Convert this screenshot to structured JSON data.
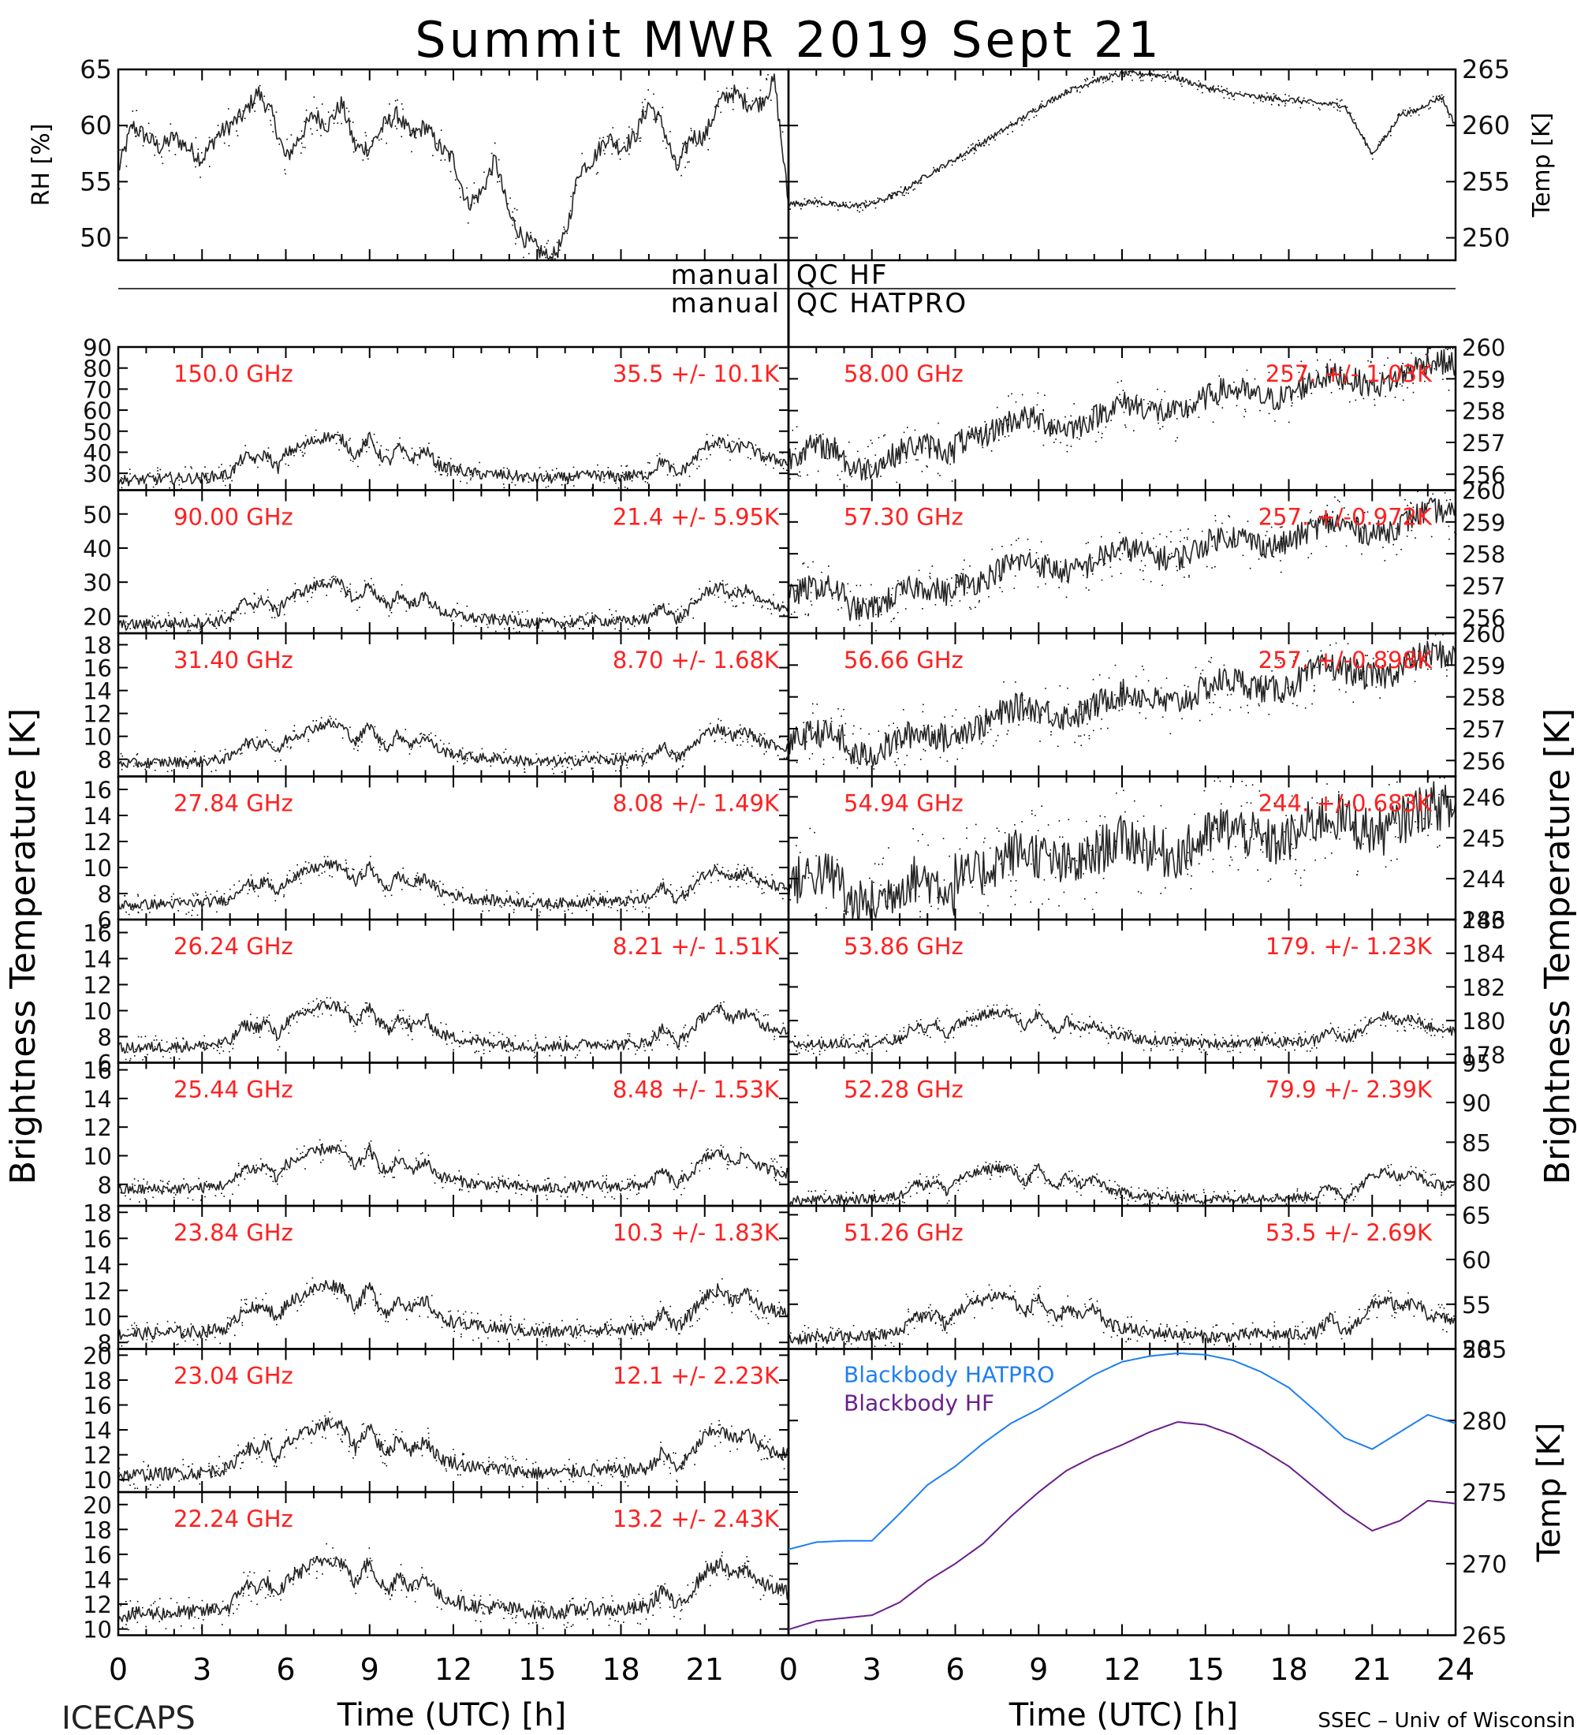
{
  "title": "Summit MWR 2019 Sept 21",
  "left_label": "ICECAPS",
  "credit": "SSEC – Univ of Wisconsin",
  "xlabel": "Time (UTC) [h]",
  "ylabel_left": "Brightness Temperature [K]",
  "ylabel_right": "Brightness Temperature [K]",
  "qc": {
    "line1": "manual QC HF",
    "line2": "manual QC HATPRO",
    "left1": "manual",
    "right1": "QC HF",
    "left2": "manual",
    "right2": "QC HATPRO"
  },
  "x_ticks_left": [
    "0",
    "3",
    "6",
    "9",
    "12",
    "15",
    "18",
    "21"
  ],
  "x_ticks_right": [
    "0",
    "3",
    "6",
    "9",
    "12",
    "15",
    "18",
    "21",
    "24"
  ],
  "colors": {
    "annotation": "#ff2020",
    "hatpro": "#1e7ff0",
    "hf": "#6a1f8a",
    "axis": "#000000"
  },
  "chart_data": [
    {
      "id": "rh",
      "type": "scatter",
      "ylabel": "RH [%]",
      "ylim": [
        48,
        65
      ],
      "yticks": [
        50,
        55,
        60,
        65
      ],
      "xlim": [
        0,
        24
      ],
      "x": [
        0,
        0.5,
        1,
        1.5,
        2,
        2.5,
        3,
        3.5,
        4,
        4.5,
        5,
        5.5,
        6,
        6.5,
        7,
        7.5,
        8,
        8.5,
        9,
        9.5,
        10,
        10.5,
        11,
        11.5,
        12,
        12.5,
        13,
        13.5,
        14,
        14.5,
        15,
        15.5,
        16,
        16.5,
        17,
        17.5,
        18,
        18.5,
        19,
        19.5,
        20,
        20.5,
        21,
        21.5,
        22,
        22.5,
        23,
        23.5,
        24
      ],
      "values": [
        56,
        60,
        59,
        58,
        59,
        58,
        57,
        59,
        60,
        61,
        63,
        61,
        57,
        59,
        61,
        60,
        62,
        58,
        58,
        60,
        61,
        59,
        60,
        58,
        57,
        53,
        54,
        57,
        52,
        50,
        49,
        48,
        50,
        56,
        57,
        59,
        58,
        59,
        62,
        60,
        56,
        59,
        59,
        62,
        63,
        62,
        62,
        64,
        53
      ]
    },
    {
      "id": "temp",
      "type": "line",
      "ylabel": "Temp [K]",
      "ylim": [
        248,
        265
      ],
      "yticks": [
        250,
        255,
        260,
        265
      ],
      "xlim": [
        0,
        24
      ],
      "x": [
        0,
        1,
        2,
        3,
        4,
        5,
        6,
        7,
        8,
        9,
        10,
        11,
        12,
        13,
        14,
        15,
        16,
        17,
        18,
        19,
        20,
        20.5,
        21,
        21.5,
        22,
        22.5,
        23,
        23.5,
        24
      ],
      "values": [
        253.0,
        253.2,
        252.8,
        253.0,
        254.0,
        255.6,
        257.0,
        258.5,
        260.0,
        261.6,
        263.0,
        264.0,
        264.6,
        264.6,
        264.2,
        263.4,
        262.8,
        262.5,
        262.3,
        262.0,
        261.8,
        259.6,
        257.5,
        259.0,
        261.0,
        261.2,
        262.0,
        262.5,
        260.0
      ]
    }
  ],
  "channels_left": [
    {
      "freq": "150.0 GHz",
      "stats": "35.5 +/-  10.1K",
      "ylim": [
        22,
        90
      ],
      "yticks": [
        30,
        40,
        50,
        60,
        70,
        80,
        90
      ],
      "base": 26,
      "amp": 30
    },
    {
      "freq": "90.00 GHz",
      "stats": "21.4 +/-  5.95K",
      "ylim": [
        15,
        57
      ],
      "yticks": [
        20,
        30,
        40,
        50
      ],
      "base": 17,
      "amp": 18
    },
    {
      "freq": "31.40 GHz",
      "stats": "8.70 +/- 1.68K",
      "ylim": [
        6.5,
        19
      ],
      "yticks": [
        8,
        10,
        12,
        14,
        16,
        18
      ],
      "base": 7.5,
      "amp": 5
    },
    {
      "freq": "27.84 GHz",
      "stats": "8.08 +/- 1.49K",
      "ylim": [
        6,
        17
      ],
      "yticks": [
        6,
        8,
        10,
        12,
        14,
        16
      ],
      "base": 7,
      "amp": 4.5
    },
    {
      "freq": "26.24 GHz",
      "stats": "8.21 +/- 1.51K",
      "ylim": [
        6,
        17
      ],
      "yticks": [
        6,
        8,
        10,
        12,
        14,
        16
      ],
      "base": 7,
      "amp": 4.8
    },
    {
      "freq": "25.44 GHz",
      "stats": "8.48 +/- 1.53K",
      "ylim": [
        6.5,
        16.5
      ],
      "yticks": [
        8,
        10,
        12,
        14,
        16
      ],
      "base": 7.5,
      "amp": 4.2
    },
    {
      "freq": "23.84 GHz",
      "stats": "10.3 +/- 1.83K",
      "ylim": [
        7.5,
        18.5
      ],
      "yticks": [
        8,
        10,
        12,
        14,
        16,
        18
      ],
      "base": 8.5,
      "amp": 5.5
    },
    {
      "freq": "23.04 GHz",
      "stats": "12.1 +/- 2.23K",
      "ylim": [
        9,
        20.5
      ],
      "yticks": [
        10,
        12,
        14,
        16,
        18,
        20
      ],
      "base": 10.2,
      "amp": 6
    },
    {
      "freq": "22.24 GHz",
      "stats": "13.2 +/- 2.43K",
      "ylim": [
        9.5,
        21
      ],
      "yticks": [
        10,
        12,
        14,
        16,
        18,
        20
      ],
      "base": 11,
      "amp": 6.5
    }
  ],
  "channels_right": [
    {
      "freq": "58.00 GHz",
      "stats": "257. +/- 1.03K",
      "ylim": [
        255.5,
        260
      ],
      "yticks": [
        256,
        257,
        258,
        259,
        260
      ],
      "start": 256.5,
      "end": 259.4,
      "noise": 0.4
    },
    {
      "freq": "57.30 GHz",
      "stats": "257. +/-0.972K",
      "ylim": [
        255.5,
        260
      ],
      "yticks": [
        256,
        257,
        258,
        259,
        260
      ],
      "start": 256.6,
      "end": 259.2,
      "noise": 0.4
    },
    {
      "freq": "56.66 GHz",
      "stats": "257. +/-0.898K",
      "ylim": [
        255.5,
        260
      ],
      "yticks": [
        256,
        257,
        258,
        259,
        260
      ],
      "start": 256.5,
      "end": 259.2,
      "noise": 0.45
    },
    {
      "freq": "54.94 GHz",
      "stats": "244. +/-0.683K",
      "ylim": [
        243,
        246.5
      ],
      "yticks": [
        243,
        244,
        245,
        246
      ],
      "start": 243.8,
      "end": 245.6,
      "noise": 0.6
    },
    {
      "freq": "53.86 GHz",
      "stats": "179. +/- 1.23K",
      "ylim": [
        177.5,
        186
      ],
      "yticks": [
        178,
        180,
        182,
        184,
        186
      ],
      "base": 178.5,
      "amp": 2.8
    },
    {
      "freq": "52.28 GHz",
      "stats": "79.9 +/- 2.39K",
      "ylim": [
        77,
        95
      ],
      "yticks": [
        80,
        85,
        90,
        95
      ],
      "base": 77.5,
      "amp": 6
    },
    {
      "freq": "51.26 GHz",
      "stats": "53.5 +/- 2.69K",
      "ylim": [
        50,
        66
      ],
      "yticks": [
        50,
        55,
        60,
        65
      ],
      "base": 51,
      "amp": 7
    }
  ],
  "blackbody": {
    "type": "line",
    "ylabel": "Temp [K]",
    "ylim": [
      265,
      285
    ],
    "yticks": [
      265,
      270,
      275,
      280,
      285
    ],
    "xlim": [
      0,
      24
    ],
    "series": [
      {
        "name": "Blackbody HATPRO",
        "color": "#1e7ff0",
        "x": [
          0,
          1,
          2,
          3,
          4,
          5,
          6,
          7,
          8,
          9,
          10,
          11,
          12,
          13,
          14,
          15,
          16,
          17,
          18,
          19,
          20,
          21,
          22,
          23,
          24
        ],
        "values": [
          271.0,
          271.5,
          271.6,
          271.6,
          273.5,
          275.5,
          276.8,
          278.4,
          279.8,
          280.8,
          282.0,
          283.2,
          284.1,
          284.5,
          284.7,
          284.6,
          284.2,
          283.4,
          282.3,
          280.6,
          278.8,
          278.0,
          279.2,
          280.4,
          279.8
        ]
      },
      {
        "name": "Blackbody HF",
        "color": "#6a1f8a",
        "x": [
          0,
          1,
          2,
          3,
          4,
          5,
          6,
          7,
          8,
          9,
          10,
          11,
          12,
          13,
          14,
          15,
          16,
          17,
          18,
          19,
          20,
          21,
          22,
          23,
          24
        ],
        "values": [
          265.4,
          266.0,
          266.2,
          266.4,
          267.3,
          268.8,
          270.0,
          271.4,
          273.3,
          275.0,
          276.5,
          277.5,
          278.3,
          279.2,
          279.9,
          279.7,
          279.0,
          278.0,
          276.8,
          275.2,
          273.6,
          272.3,
          273.0,
          274.4,
          274.2
        ]
      }
    ]
  }
}
